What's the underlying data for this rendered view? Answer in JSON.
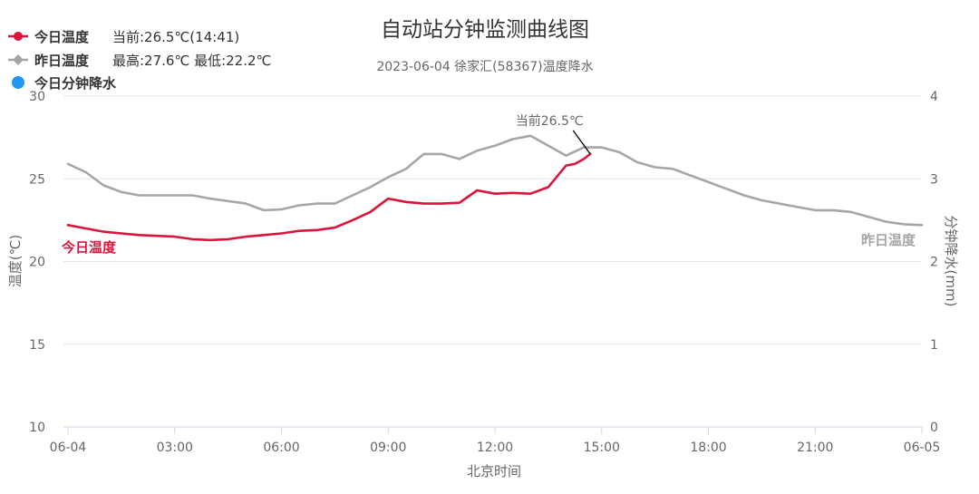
{
  "chart_data": {
    "type": "line",
    "title": "自动站分钟监测曲线图",
    "subtitle": "2023-06-04 徐家汇(58367)温度降水",
    "xlabel": "北京时间",
    "ylabel_left": "温度(℃)",
    "ylabel_right": "分钟降水(mm)",
    "x_unit": "hours since 06-04 00:00",
    "xlim": [
      0,
      24
    ],
    "ylim_left": [
      10,
      30
    ],
    "ylim_right": [
      0,
      4
    ],
    "x_ticks": [
      0,
      3,
      6,
      9,
      12,
      15,
      18,
      21,
      24
    ],
    "x_tick_labels": [
      "06-04",
      "03:00",
      "06:00",
      "09:00",
      "12:00",
      "15:00",
      "18:00",
      "21:00",
      "06-05"
    ],
    "y_ticks_left": [
      10,
      15,
      20,
      25,
      30
    ],
    "y_ticks_right": [
      0,
      1,
      2,
      3,
      4
    ],
    "grid": true,
    "legend_position": "top-left",
    "legend": [
      {
        "key": "today",
        "label": "今日温度",
        "detail": "当前:26.5℃(14:41)"
      },
      {
        "key": "yesterday",
        "label": "昨日温度",
        "detail": "最高:27.6℃ 最低:22.2℃"
      },
      {
        "key": "rain",
        "label": "今日分钟降水",
        "detail": ""
      }
    ],
    "annotation": {
      "text": "当前26.5℃",
      "x": 14.68,
      "y": 26.5
    },
    "series": [
      {
        "name": "今日温度",
        "color": "#dc143c",
        "label": "今日温度",
        "x": [
          0,
          0.5,
          1,
          1.5,
          2,
          2.5,
          3,
          3.5,
          4,
          4.5,
          5,
          5.5,
          6,
          6.5,
          7,
          7.5,
          8,
          8.5,
          9,
          9.5,
          10,
          10.5,
          11,
          11.5,
          12,
          12.5,
          13,
          13.5,
          14,
          14.25,
          14.5,
          14.68
        ],
        "y": [
          22.2,
          22.0,
          21.8,
          21.7,
          21.6,
          21.55,
          21.5,
          21.35,
          21.3,
          21.35,
          21.5,
          21.6,
          21.7,
          21.85,
          21.9,
          22.05,
          22.5,
          23.0,
          23.8,
          23.6,
          23.5,
          23.5,
          23.55,
          24.3,
          24.1,
          24.15,
          24.1,
          24.5,
          25.8,
          25.9,
          26.2,
          26.5
        ]
      },
      {
        "name": "昨日温度",
        "color": "#a6a6a6",
        "label": "昨日温度",
        "x": [
          0,
          0.5,
          1,
          1.5,
          2,
          2.5,
          3,
          3.5,
          4,
          4.5,
          5,
          5.5,
          6,
          6.5,
          7,
          7.5,
          8,
          8.5,
          9,
          9.5,
          10,
          10.5,
          11,
          11.5,
          12,
          12.5,
          13,
          13.5,
          14,
          14.5,
          15,
          15.5,
          16,
          16.5,
          17,
          17.5,
          18,
          18.5,
          19,
          19.5,
          20,
          20.5,
          21,
          21.5,
          22,
          22.5,
          23,
          23.5,
          24
        ],
        "y": [
          25.9,
          25.4,
          24.6,
          24.2,
          24.0,
          24.0,
          24.0,
          24.0,
          23.8,
          23.65,
          23.5,
          23.1,
          23.15,
          23.4,
          23.5,
          23.5,
          24.0,
          24.5,
          25.1,
          25.6,
          26.5,
          26.5,
          26.2,
          26.7,
          27.0,
          27.4,
          27.6,
          27.0,
          26.4,
          26.9,
          26.9,
          26.6,
          26.0,
          25.7,
          25.6,
          25.2,
          24.8,
          24.4,
          24.0,
          23.7,
          23.5,
          23.3,
          23.1,
          23.1,
          23.0,
          22.7,
          22.4,
          22.25,
          22.2
        ]
      },
      {
        "name": "今日分钟降水",
        "color": "#2196f3",
        "values": []
      }
    ]
  }
}
